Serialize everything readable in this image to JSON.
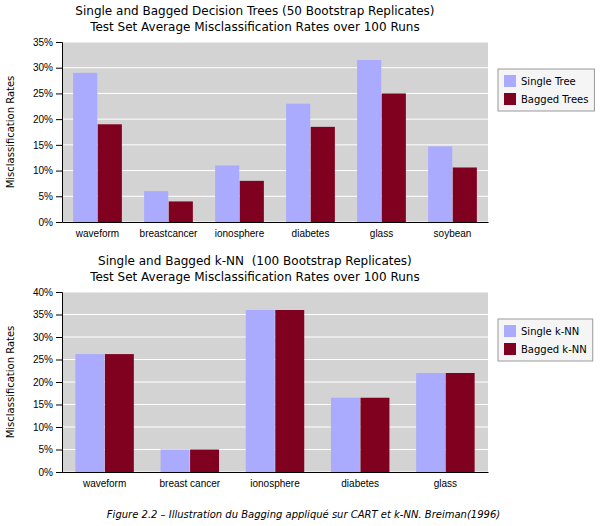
{
  "chart_data": [
    {
      "type": "bar",
      "title": "Single and Bagged Decision Trees (50 Bootstrap Replicates)",
      "subtitle": "Test Set Average Misclassification Rates over 100 Runs",
      "categories": [
        "waveform",
        "breastcancer",
        "ionosphere",
        "diabetes",
        "glass",
        "soybean"
      ],
      "series": [
        {
          "name": "Single Tree",
          "color": "#aaaaff",
          "values": [
            0.29,
            0.06,
            0.11,
            0.23,
            0.315,
            0.147
          ]
        },
        {
          "name": "Bagged Trees",
          "color": "#800020",
          "values": [
            0.19,
            0.04,
            0.08,
            0.185,
            0.25,
            0.106
          ]
        }
      ],
      "y_label": "Misclassification Rates",
      "ylim": [
        0,
        0.35
      ],
      "yticks": [
        {
          "value": 0.0,
          "label": "0%"
        },
        {
          "value": 0.05,
          "label": "5%"
        },
        {
          "value": 0.1,
          "label": "10%"
        },
        {
          "value": 0.15,
          "label": "15%"
        },
        {
          "value": 0.2,
          "label": "20%"
        },
        {
          "value": 0.25,
          "label": "25%"
        },
        {
          "value": 0.3,
          "label": "30%"
        },
        {
          "value": 0.35,
          "label": "35%"
        }
      ],
      "grid": true,
      "legend": "right"
    },
    {
      "type": "bar",
      "title": "Single and Bagged k-NN  (100 Bootstrap Replicates)",
      "subtitle": "Test Set Average Misclassification Rates over 100 Runs",
      "categories": [
        "waveform",
        "breast cancer",
        "ionosphere",
        "diabetes",
        "glass"
      ],
      "series": [
        {
          "name": "Single k-NN",
          "color": "#aaaaff",
          "values": [
            0.262,
            0.05,
            0.36,
            0.165,
            0.22
          ]
        },
        {
          "name": "Bagged k-NN",
          "color": "#800020",
          "values": [
            0.262,
            0.05,
            0.36,
            0.165,
            0.22
          ]
        }
      ],
      "y_label": "Misclassification Rates",
      "ylim": [
        0,
        0.4
      ],
      "yticks": [
        {
          "value": 0.0,
          "label": "0%"
        },
        {
          "value": 0.05,
          "label": "5%"
        },
        {
          "value": 0.1,
          "label": "10%"
        },
        {
          "value": 0.15,
          "label": "15%"
        },
        {
          "value": 0.2,
          "label": "20%"
        },
        {
          "value": 0.25,
          "label": "25%"
        },
        {
          "value": 0.3,
          "label": "30%"
        },
        {
          "value": 0.35,
          "label": "35%"
        },
        {
          "value": 0.4,
          "label": "40%"
        }
      ],
      "grid": true,
      "legend": "right"
    }
  ],
  "caption": "Figure 2.2 – Illustration du Bagging appliqué sur CART et k-NN. Breiman(1996)"
}
